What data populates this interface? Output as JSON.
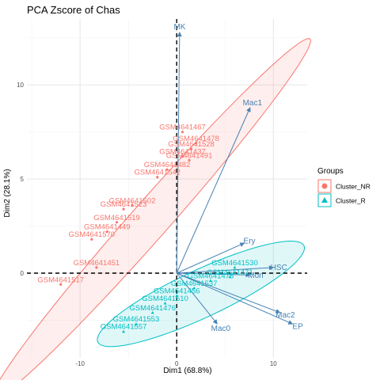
{
  "chart_data": {
    "type": "scatter",
    "title": "PCA Zscore of Chas",
    "xlabel": "Dim1 (68.8%)",
    "ylabel": "Dim2 (28.1%)",
    "xlim": [
      -15.5,
      13.5
    ],
    "ylim": [
      -4.5,
      13.5
    ],
    "x_ticks": [
      -10,
      0,
      10
    ],
    "y_ticks": [
      0,
      5,
      10
    ],
    "grid": true,
    "legend": {
      "title": "Groups",
      "position": "right",
      "items": [
        "Cluster_NR",
        "Cluster_R"
      ]
    },
    "colors": {
      "Cluster_NR": "#F8766D",
      "Cluster_R": "#00BFC4",
      "arrow": "#4682B4"
    },
    "series": [
      {
        "name": "Cluster_NR",
        "ellipse": {
          "cx": -2.6,
          "cy": 2.9,
          "rx": 19.0,
          "ry": 1.3,
          "angle_deg": 30
        },
        "points": [
          {
            "label": "GSM4641467",
            "x": 0.6,
            "y": 7.5
          },
          {
            "label": "GSM4641478",
            "x": 2.0,
            "y": 6.9
          },
          {
            "label": "GSM4641528",
            "x": 1.5,
            "y": 6.6
          },
          {
            "label": "GSM4641437",
            "x": 0.6,
            "y": 6.2
          },
          {
            "label": "GSM4641491",
            "x": 1.3,
            "y": 6.0
          },
          {
            "label": "GSM4641482",
            "x": -1.0,
            "y": 5.5
          },
          {
            "label": "GSM4641542",
            "x": -2.0,
            "y": 5.1
          },
          {
            "label": "GSM4641502",
            "x": -4.6,
            "y": 3.6
          },
          {
            "label": "GSM4641523",
            "x": -5.5,
            "y": 3.4
          },
          {
            "label": "GSM4641519",
            "x": -6.2,
            "y": 2.7
          },
          {
            "label": "GSM4641449",
            "x": -7.2,
            "y": 2.2
          },
          {
            "label": "GSM4641570",
            "x": -8.8,
            "y": 1.8
          },
          {
            "label": "GSM4641451",
            "x": -8.3,
            "y": 0.3
          },
          {
            "label": "GSM4641517",
            "x": -12.0,
            "y": -0.6
          }
        ]
      },
      {
        "name": "Cluster_R",
        "ellipse": {
          "cx": 2.5,
          "cy": -1.1,
          "rx": 11.0,
          "ry": 1.35,
          "angle_deg": 13
        },
        "points": [
          {
            "label": "GSM4641530",
            "x": 6.0,
            "y": 0.3
          },
          {
            "label": "GSM4641471",
            "x": 5.5,
            "y": -0.2
          },
          {
            "label": "GSM4641478",
            "x": 3.5,
            "y": -0.4
          },
          {
            "label": "GSM4641537",
            "x": 1.8,
            "y": -0.8
          },
          {
            "label": "GSM4641456",
            "x": 0.0,
            "y": -1.2
          },
          {
            "label": "GSM4641510",
            "x": -1.2,
            "y": -1.6
          },
          {
            "label": "GSM4641476",
            "x": -2.5,
            "y": -2.1
          },
          {
            "label": "GSM4641553",
            "x": -4.2,
            "y": -2.7
          },
          {
            "label": "GSM4641557",
            "x": -5.5,
            "y": -3.1
          }
        ]
      }
    ],
    "variables": [
      {
        "name": "MK",
        "x": 0.3,
        "y": 12.8
      },
      {
        "name": "Mac1",
        "x": 7.6,
        "y": 8.8
      },
      {
        "name": "Ery",
        "x": 7.0,
        "y": 1.6
      },
      {
        "name": "HSC",
        "x": 10.0,
        "y": 0.3
      },
      {
        "name": "Mon",
        "x": 7.6,
        "y": -0.1
      },
      {
        "name": "Mac0",
        "x": 4.2,
        "y": -2.7
      },
      {
        "name": "Mac2",
        "x": 10.7,
        "y": -2.1
      },
      {
        "name": "EP",
        "x": 12.0,
        "y": -2.7
      }
    ]
  }
}
